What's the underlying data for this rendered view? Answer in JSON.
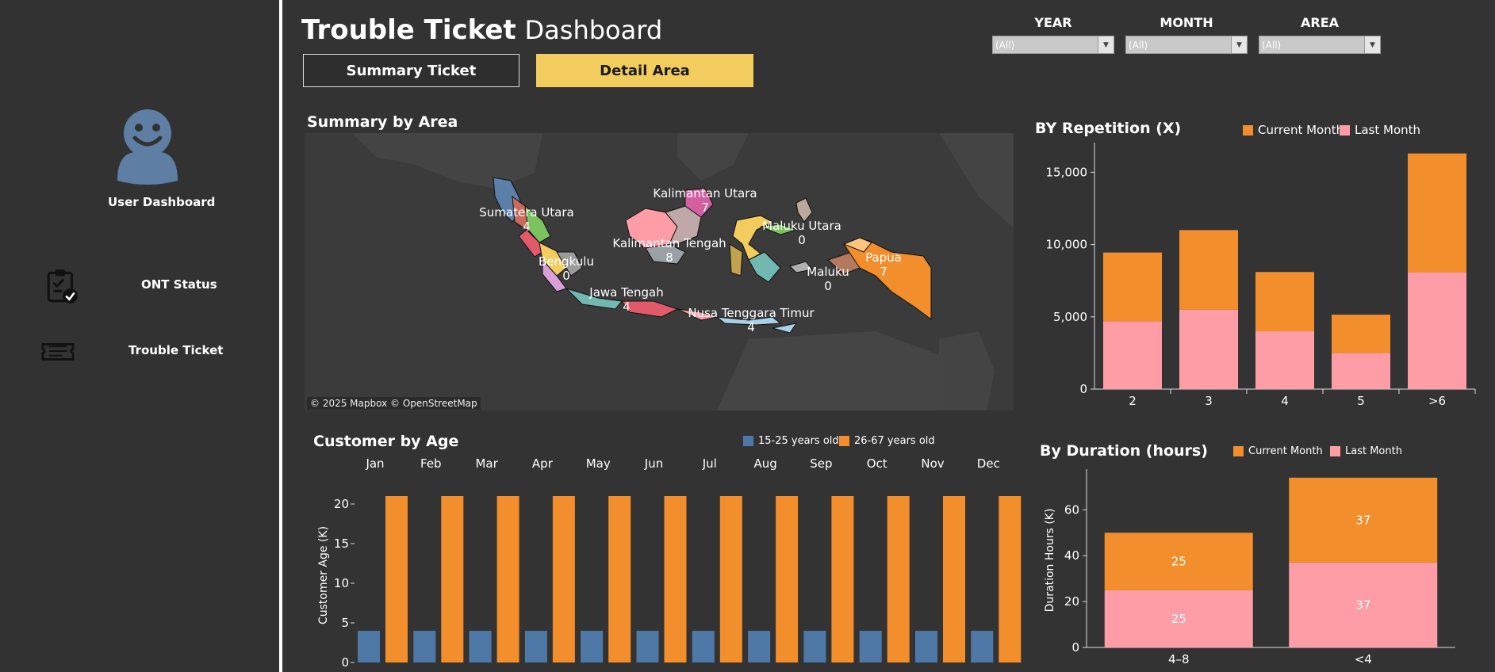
{
  "sidebar": {
    "avatar_label": "User Dashboard",
    "items": [
      {
        "label": "ONT Status",
        "icon": "clipboard-check-icon"
      },
      {
        "label": "Trouble Ticket",
        "icon": "ticket-icon"
      }
    ]
  },
  "header": {
    "title_bold": "Trouble Ticket",
    "title_light": "Dashboard",
    "tabs": [
      {
        "label": "Summary Ticket",
        "active": false
      },
      {
        "label": "Detail Area",
        "active": true
      }
    ]
  },
  "filters": [
    {
      "label": "YEAR",
      "value": "(All)"
    },
    {
      "label": "MONTH",
      "value": "(All)"
    },
    {
      "label": "AREA",
      "value": "(All)"
    }
  ],
  "colors": {
    "orange": "#f28e2b",
    "pink": "#ff9da7",
    "blue": "#4e79a7",
    "accent_tab": "#f2cd5e",
    "background": "#333333"
  },
  "map": {
    "title": "Summary by Area",
    "credit": "© 2025 Mapbox © OpenStreetMap",
    "labels": [
      {
        "name": "Sumatera Utara",
        "value": "4"
      },
      {
        "name": "Kalimantan Utara",
        "value": "7"
      },
      {
        "name": "Maluku Utara",
        "value": "0"
      },
      {
        "name": "Kalimantan Tengah",
        "value": "8"
      },
      {
        "name": "Bengkulu",
        "value": "0"
      },
      {
        "name": "Papua",
        "value": "7"
      },
      {
        "name": "Maluku",
        "value": "0"
      },
      {
        "name": "Jawa Tengah",
        "value": "4"
      },
      {
        "name": "Nusa Tenggara Timur",
        "value": "4"
      }
    ]
  },
  "repetition": {
    "title": "BY Repetition (X)",
    "legend": [
      "Current Month",
      "Last Month"
    ]
  },
  "age": {
    "title": "Customer by Age",
    "legend": [
      "15-25 years old",
      "26-67 years old"
    ]
  },
  "duration": {
    "title": "By Duration (hours)",
    "legend": [
      "Current Month",
      "Last Month"
    ]
  },
  "chart_data": [
    {
      "id": "repetition",
      "type": "bar",
      "stacked": true,
      "title": "BY Repetition (X)",
      "categories": [
        "2",
        "3",
        "4",
        "5",
        ">6"
      ],
      "series": [
        {
          "name": "Last Month",
          "values": [
            4700,
            5500,
            4000,
            2500,
            8100
          ],
          "color": "#ff9da7"
        },
        {
          "name": "Current Month",
          "values": [
            4750,
            5500,
            4100,
            2650,
            8200
          ],
          "color": "#f28e2b"
        }
      ],
      "ylim": [
        0,
        16500
      ],
      "yticks": [
        0,
        5000,
        10000,
        15000
      ],
      "ytick_labels": [
        "0",
        "5,000",
        "10,000",
        "15,000"
      ],
      "legend": "top-right"
    },
    {
      "id": "age",
      "type": "bar",
      "title": "Customer by Age",
      "ylabel": "Customer Age (K)",
      "categories": [
        "Jan",
        "Feb",
        "Mar",
        "Apr",
        "May",
        "Jun",
        "Jul",
        "Aug",
        "Sep",
        "Oct",
        "Nov",
        "Dec"
      ],
      "series": [
        {
          "name": "15-25 years old",
          "values": [
            4,
            4,
            4,
            4,
            4,
            4,
            4,
            4,
            4,
            4,
            4,
            4
          ],
          "color": "#4e79a7"
        },
        {
          "name": "26-67 years old",
          "values": [
            21,
            21,
            21,
            21,
            21,
            21,
            21,
            21,
            21,
            21,
            21,
            21
          ],
          "color": "#f28e2b"
        }
      ],
      "ylim": [
        0,
        22
      ],
      "yticks": [
        0,
        5,
        10,
        15,
        20
      ],
      "legend": "top-right"
    },
    {
      "id": "duration",
      "type": "bar",
      "stacked": true,
      "title": "By Duration (hours)",
      "ylabel": "Duration Hours (K)",
      "categories": [
        "4–8",
        "<4"
      ],
      "series": [
        {
          "name": "Last Month",
          "values": [
            25,
            37
          ],
          "labels": [
            "25",
            "37"
          ],
          "color": "#ff9da7"
        },
        {
          "name": "Current Month",
          "values": [
            25,
            37
          ],
          "labels": [
            "25",
            "37"
          ],
          "color": "#f28e2b"
        }
      ],
      "ylim": [
        0,
        76
      ],
      "yticks": [
        0,
        20,
        40,
        60
      ],
      "legend": "top-right"
    }
  ]
}
